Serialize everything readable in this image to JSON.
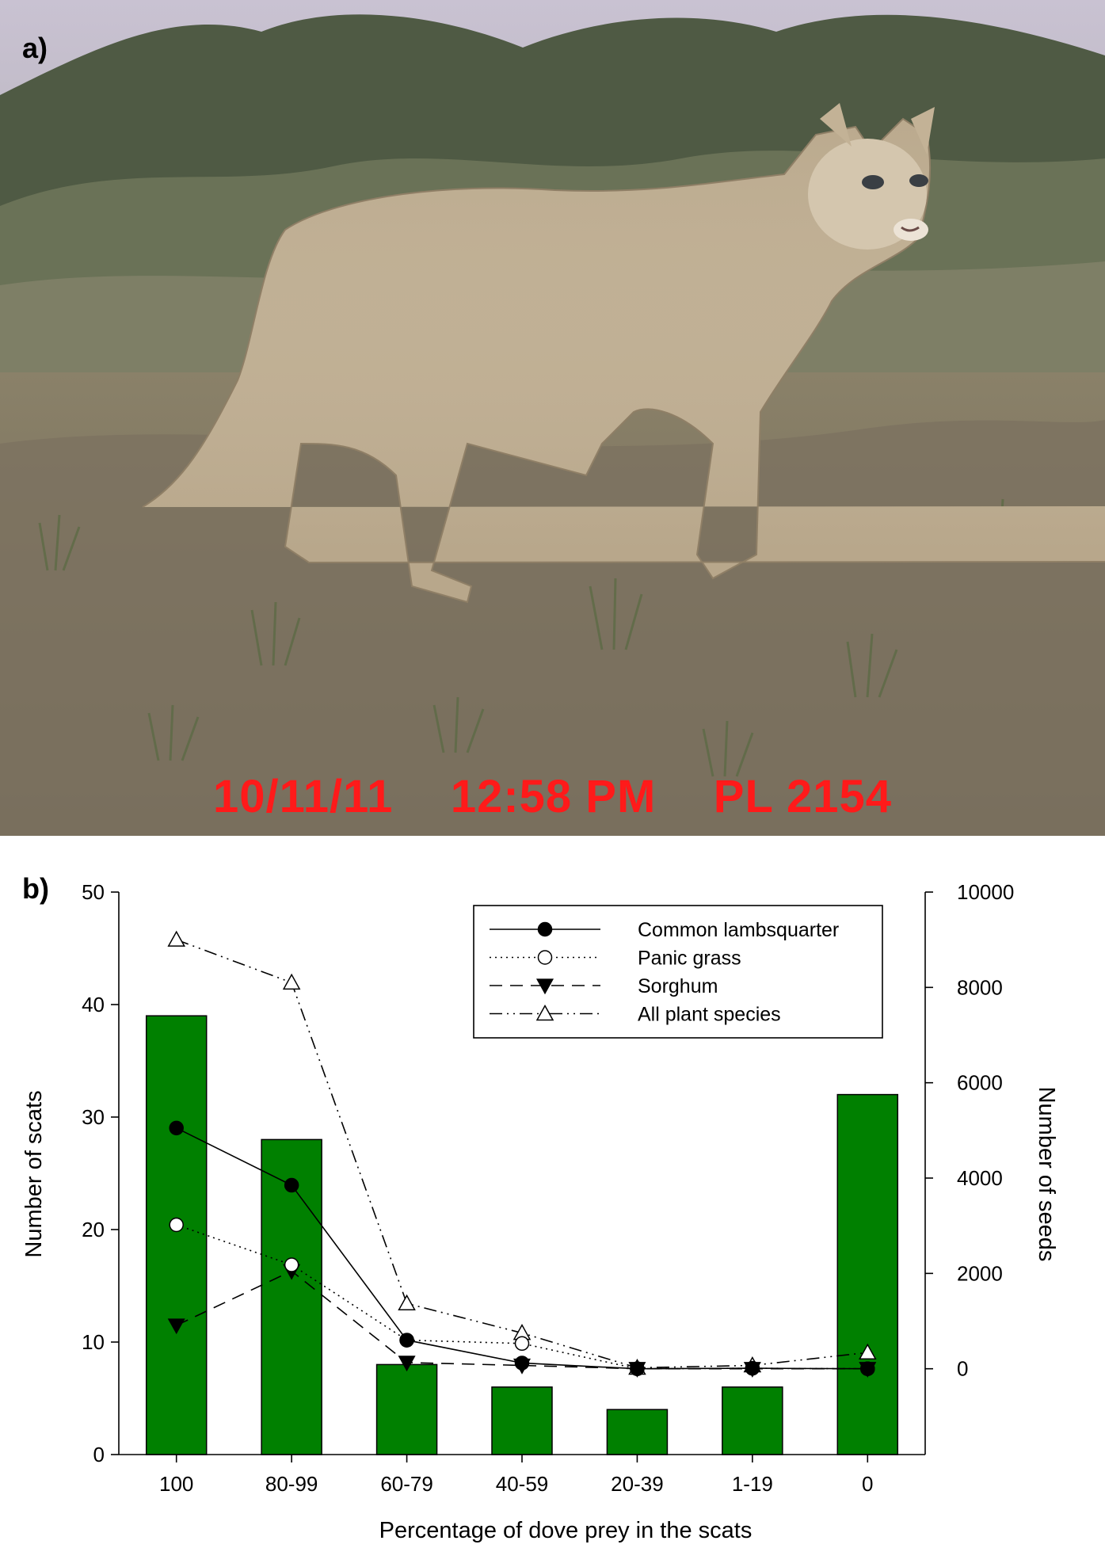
{
  "panel_a": {
    "label": "a)",
    "stamp": {
      "date": "10/11/11",
      "time": "12:58 PM",
      "camera": "PL 2154"
    },
    "colors": {
      "stamp": "#ff1a1a"
    }
  },
  "panel_b": {
    "label": "b)"
  },
  "chart_data": {
    "type": "bar",
    "categories": [
      "100",
      "80-99",
      "60-79",
      "40-59",
      "20-39",
      "1-19",
      "0"
    ],
    "xlabel": "Percentage of dove prey in the scats",
    "ylabel": "Number of scats",
    "y2label": "Number of seeds",
    "ylim": [
      0,
      50
    ],
    "yticks": [
      0,
      10,
      20,
      30,
      40,
      50
    ],
    "y2lim": [
      -1800,
      10000
    ],
    "y2ticks": [
      0,
      2000,
      4000,
      6000,
      8000,
      10000
    ],
    "bars": {
      "name": "Number of scats",
      "values": [
        39,
        28,
        8,
        6,
        4,
        6,
        32
      ],
      "color": "#008000"
    },
    "lines": [
      {
        "name": "Common lambsquarter",
        "marker": "filled-circle",
        "dash": "solid",
        "values": [
          5050,
          3850,
          600,
          120,
          0,
          10,
          0
        ]
      },
      {
        "name": "Panic grass",
        "marker": "open-circle",
        "dash": "dotted",
        "values": [
          3020,
          2180,
          600,
          530,
          0,
          10,
          0
        ]
      },
      {
        "name": "Sorghum",
        "marker": "filled-triangle-down",
        "dash": "dashed",
        "values": [
          910,
          2050,
          130,
          70,
          0,
          0,
          0
        ]
      },
      {
        "name": "All plant species",
        "marker": "open-triangle-up",
        "dash": "dash-dot-dot",
        "values": [
          9000,
          8100,
          1370,
          750,
          20,
          70,
          340
        ]
      }
    ],
    "legend": {
      "position": "top-right"
    },
    "grid": false
  }
}
